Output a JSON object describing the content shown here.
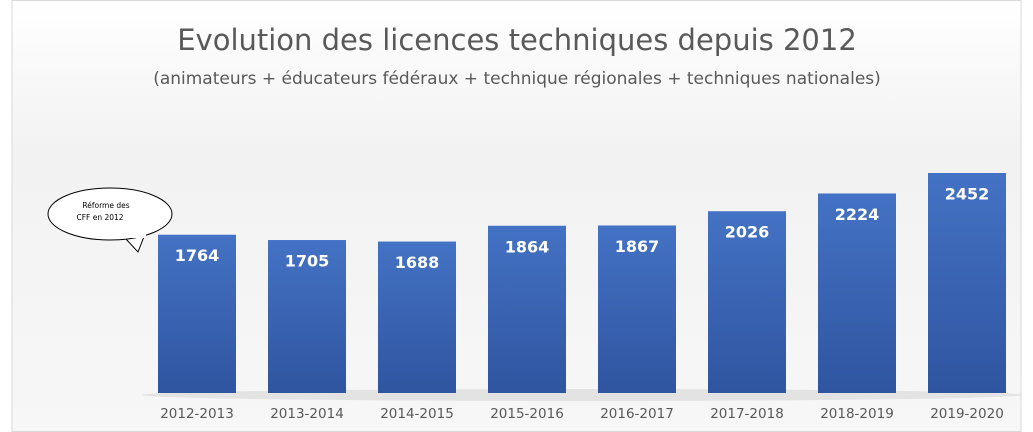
{
  "chart_data": {
    "type": "bar",
    "title": "Evolution des licences techniques depuis 2012",
    "subtitle": "(animateurs + éducateurs fédéraux + technique régionales + techniques nationales)",
    "categories": [
      "2012-2013",
      "2013-2014",
      "2014-2015",
      "2015-2016",
      "2016-2017",
      "2017-2018",
      "2018-2019",
      "2019-2020"
    ],
    "values": [
      1764,
      1705,
      1688,
      1864,
      1867,
      2026,
      2224,
      2452
    ],
    "color": "#4472c4",
    "annotation": [
      "Réforme des",
      "CFF en 2012"
    ]
  }
}
